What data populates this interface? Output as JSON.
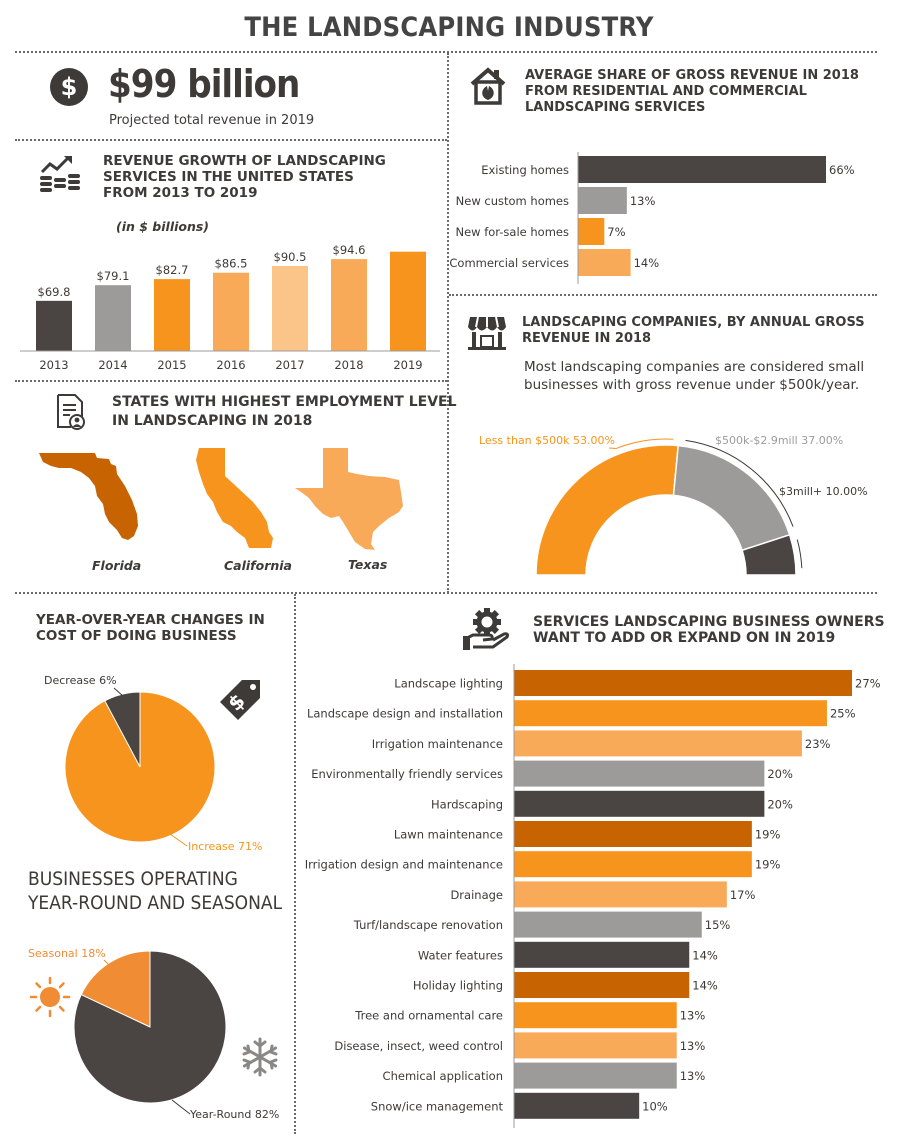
{
  "title": "THE LANDSCAPING INDUSTRY",
  "revenue": {
    "value": "$99 billion",
    "caption": "Projected total revenue in 2019"
  },
  "growth": {
    "heading_lines": [
      "REVENUE GROWTH OF LANDSCAPING",
      "SERVICES IN THE UNITED STATES",
      "FROM 2013 TO 2019"
    ],
    "unit_note": "(in $ billions)"
  },
  "states": {
    "heading_lines": [
      "STATES WITH HIGHEST EMPLOYMENT LEVEL",
      "IN LANDSCAPING IN 2018"
    ],
    "items": [
      {
        "name": "Florida",
        "color": "#c76300"
      },
      {
        "name": "California",
        "color": "#f7941d"
      },
      {
        "name": "Texas",
        "color": "#f8aa58"
      }
    ]
  },
  "share": {
    "heading_lines": [
      "AVERAGE SHARE OF GROSS REVENUE IN 2018",
      "FROM RESIDENTIAL AND COMMERCIAL",
      "LANDSCAPING SERVICES"
    ]
  },
  "companies": {
    "heading_lines": [
      "LANDSCAPING COMPANIES, BY ANNUAL GROSS",
      "REVENUE IN 2018"
    ],
    "description_lines": [
      "Most landscaping companies are considered small",
      "businesses with gross revenue under $500k/year."
    ]
  },
  "cost": {
    "heading_lines": [
      "YEAR-OVER-YEAR CHANGES IN",
      "COST OF DOING BUSINESS"
    ]
  },
  "operating": {
    "heading_lines": [
      "BUSINESSES OPERATING",
      "YEAR-ROUND AND SEASONAL"
    ]
  },
  "services": {
    "heading_lines": [
      "SERVICES LANDSCAPING BUSINESS OWNERS",
      "WANT TO ADD OR EXPAND ON IN 2019"
    ]
  },
  "icons": {
    "dollar": "dollar-circle-icon",
    "growth": "growth-chart-icon",
    "employment": "document-person-icon",
    "home": "house-leaf-icon",
    "store": "storefront-icon",
    "price_tag": "price-tag-icon",
    "sun": "sun-icon",
    "snowflake": "snowflake-icon",
    "gear_hand": "gear-hand-icon"
  },
  "colors": {
    "dark": "#4a4542",
    "gray": "#9d9b9a",
    "orange": "#f7941d",
    "light_orange": "#f8aa58",
    "pale_orange": "#fbc488",
    "burnt": "#c76300"
  },
  "chart_data": [
    {
      "id": "revenue_growth",
      "type": "bar",
      "categories": [
        "2013",
        "2014",
        "2015",
        "2016",
        "2017",
        "2018",
        "2019"
      ],
      "values": [
        69.8,
        79.1,
        82.7,
        86.5,
        90.5,
        94.6,
        99
      ],
      "labels": [
        "$69.8",
        "$79.1",
        "$82.7",
        "$86.5",
        "$90.5",
        "$94.6",
        ""
      ],
      "colors": [
        "#4a4542",
        "#9d9b9a",
        "#f7941d",
        "#f8aa58",
        "#fbc488",
        "#f8aa58",
        "#f7941d"
      ]
    },
    {
      "id": "revenue_share",
      "type": "bar",
      "orientation": "horizontal",
      "categories": [
        "Existing homes",
        "New custom homes",
        "New for-sale homes",
        "Commercial services"
      ],
      "values": [
        66,
        13,
        7,
        14
      ],
      "labels": [
        "66%",
        "13%",
        "7%",
        "14%"
      ],
      "colors": [
        "#4a4542",
        "#9d9b9a",
        "#f7941d",
        "#f8aa58"
      ]
    },
    {
      "id": "companies_by_revenue",
      "type": "pie",
      "style": "semi-donut",
      "categories": [
        "Less than $500k",
        "$500k-$2.9mill",
        "$3mill+"
      ],
      "values": [
        53.0,
        37.0,
        10.0
      ],
      "labels": [
        "Less than $500k 53.00%",
        "$500k-$2.9mill 37.00%",
        "$3mill+ 10.00%"
      ],
      "colors": [
        "#f7941d",
        "#9d9b9a",
        "#4a4542"
      ]
    },
    {
      "id": "cost_changes",
      "type": "pie",
      "categories": [
        "Decrease",
        "Increase"
      ],
      "values": [
        6,
        71
      ],
      "labels": [
        "Decrease 6%",
        "Increase 71%"
      ],
      "colors": [
        "#4a4542",
        "#f7941d"
      ]
    },
    {
      "id": "operating_mode",
      "type": "pie",
      "categories": [
        "Seasonal",
        "Year-Round"
      ],
      "values": [
        18,
        82
      ],
      "labels": [
        "Seasonal 18%",
        "Year-Round 82%"
      ],
      "colors": [
        "#f08c33",
        "#4a4542"
      ]
    },
    {
      "id": "services_to_expand",
      "type": "bar",
      "orientation": "horizontal",
      "categories": [
        "Landscape lighting",
        "Landscape design and installation",
        "Irrigation maintenance",
        "Environmentally friendly services",
        "Hardscaping",
        "Lawn maintenance",
        "Irrigation design and maintenance",
        "Drainage",
        "Turf/landscape renovation",
        "Water features",
        "Holiday lighting",
        "Tree and ornamental care",
        "Disease, insect, weed control",
        "Chemical application",
        "Snow/ice management"
      ],
      "values": [
        27,
        25,
        23,
        20,
        20,
        19,
        19,
        17,
        15,
        14,
        14,
        13,
        13,
        13,
        10
      ],
      "labels": [
        "27%",
        "25%",
        "23%",
        "20%",
        "20%",
        "19%",
        "19%",
        "17%",
        "15%",
        "14%",
        "14%",
        "13%",
        "13%",
        "13%",
        "10%"
      ],
      "colors": [
        "#c76300",
        "#f7941d",
        "#f8aa58",
        "#9d9b9a",
        "#4a4542",
        "#c76300",
        "#f7941d",
        "#f8aa58",
        "#9d9b9a",
        "#4a4542",
        "#c76300",
        "#f7941d",
        "#f8aa58",
        "#9d9b9a",
        "#4a4542"
      ]
    }
  ]
}
